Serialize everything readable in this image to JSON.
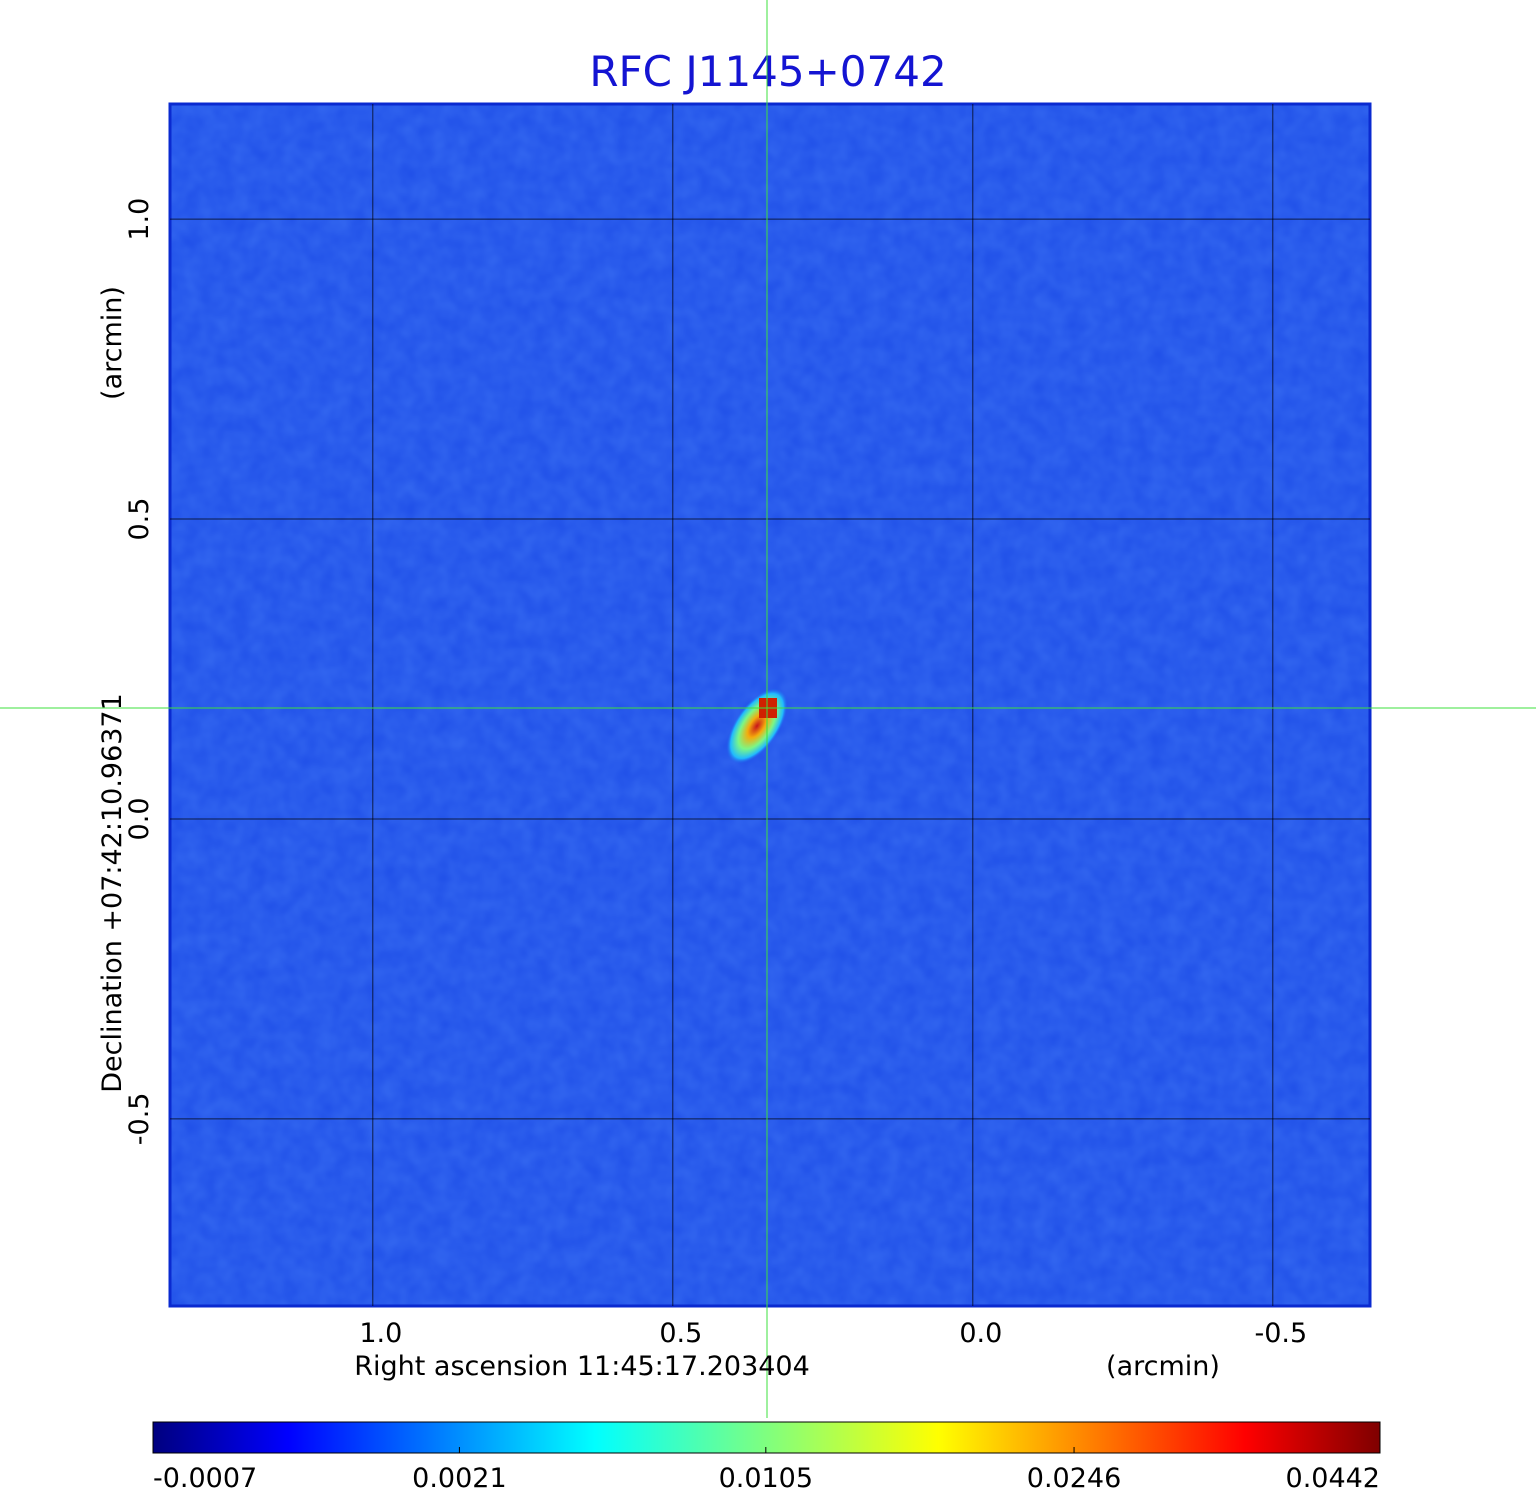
{
  "chart_data": {
    "type": "image",
    "title": "RFC J1145+0742",
    "x_label": "Right ascension  11:45:17.203404",
    "x_unit": "(arcmin)",
    "y_label": "Declination  +07:42:10.96371",
    "y_unit": "(arcmin)",
    "xlim": [
      1.338,
      -0.662
    ],
    "ylim": [
      -0.812,
      1.192
    ],
    "xticks": [
      {
        "value": 1,
        "label": "1.0"
      },
      0.5,
      {
        "value": 0,
        "label": "0.0"
      },
      -0.5
    ],
    "yticks": [
      {
        "value": 1,
        "label": "1.0"
      },
      0.5,
      {
        "value": 0,
        "label": "0.0"
      },
      -0.5
    ],
    "grid": true,
    "crosshair": {
      "x": 0.343,
      "y": 0.185
    },
    "colormap": "jet",
    "colorbar_scale": "sqrt",
    "clim": [
      -0.0007,
      0.0442
    ],
    "colorbar_ticks": [
      -0.0007,
      0.0021,
      0.0105,
      0.0246,
      0.0442
    ]
  }
}
